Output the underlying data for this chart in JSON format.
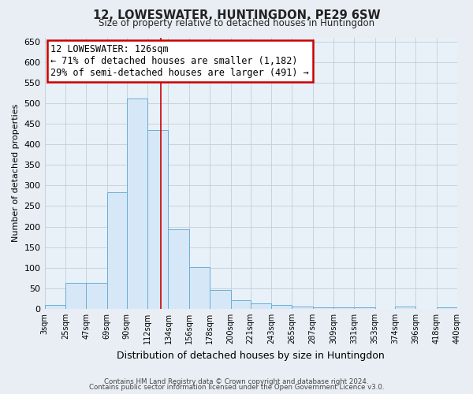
{
  "title": "12, LOWESWATER, HUNTINGDON, PE29 6SW",
  "subtitle": "Size of property relative to detached houses in Huntingdon",
  "xlabel": "Distribution of detached houses by size in Huntingdon",
  "ylabel": "Number of detached properties",
  "footer_line1": "Contains HM Land Registry data © Crown copyright and database right 2024.",
  "footer_line2": "Contains public sector information licensed under the Open Government Licence v3.0.",
  "annotation_title": "12 LOWESWATER: 126sqm",
  "annotation_line2": "← 71% of detached houses are smaller (1,182)",
  "annotation_line3": "29% of semi-detached houses are larger (491) →",
  "bar_edges": [
    3,
    25,
    47,
    69,
    90,
    112,
    134,
    156,
    178,
    200,
    221,
    243,
    265,
    287,
    309,
    331,
    353,
    374,
    396,
    418,
    440
  ],
  "bar_heights": [
    10,
    63,
    63,
    283,
    512,
    435,
    193,
    102,
    46,
    20,
    13,
    10,
    5,
    3,
    3,
    3,
    0,
    5,
    0,
    3
  ],
  "bar_color": "#d6e8f7",
  "bar_edge_color": "#6aaed6",
  "vline_color": "#cc0000",
  "vline_x": 126,
  "box_facecolor": "#ffffff",
  "box_edgecolor": "#cc0000",
  "ylim": [
    0,
    660
  ],
  "ytick_step": 50,
  "xtick_labels": [
    "3sqm",
    "25sqm",
    "47sqm",
    "69sqm",
    "90sqm",
    "112sqm",
    "134sqm",
    "156sqm",
    "178sqm",
    "200sqm",
    "221sqm",
    "243sqm",
    "265sqm",
    "287sqm",
    "309sqm",
    "331sqm",
    "353sqm",
    "374sqm",
    "396sqm",
    "418sqm",
    "440sqm"
  ],
  "bg_color": "#e8eef4",
  "plot_bg_color": "#e8f0f8"
}
